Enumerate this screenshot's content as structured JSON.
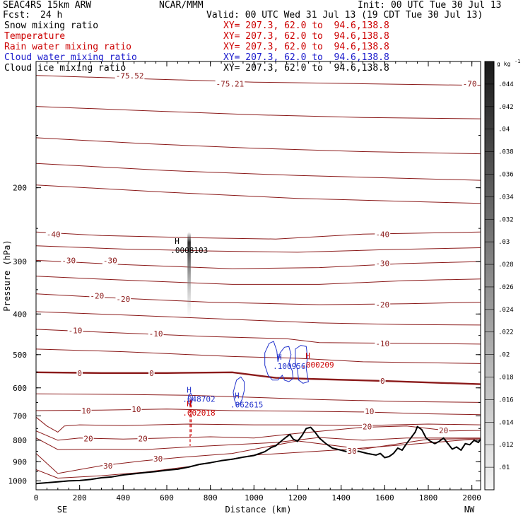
{
  "header": {
    "model": "SEAC4RS 15km ARW",
    "center": "NCAR/MMM",
    "init": "Init: 00 UTC Tue 30 Jul 13",
    "fcst_label": "Fcst:",
    "fcst_value": "24 h",
    "valid": "Valid: 00 UTC Wed 31 Jul 13 (19 CDT Tue 30 Jul 13)",
    "fields": [
      {
        "label": "Snow mixing ratio",
        "xy": "XY= 207.3, 62.0 to  94.6,138.8",
        "color": "#000000"
      },
      {
        "label": "Temperature",
        "xy": "XY= 207.3, 62.0 to  94.6,138.8",
        "color": "#cc0000"
      },
      {
        "label": "Rain water mixing ratio",
        "xy": "XY= 207.3, 62.0 to  94.6,138.8",
        "color": "#cc0000"
      },
      {
        "label": "Cloud water mixing ratio",
        "xy": "XY= 207.3, 62.0 to  94.6,138.8",
        "color": "#1a1acc"
      },
      {
        "label": "Cloud ice mixing ratio",
        "xy": "XY= 207.3, 62.0 to  94.6,138.8",
        "color": "#000000"
      }
    ]
  },
  "chart_data": {
    "type": "cross-section",
    "xlabel": "Distance (km)",
    "ylabel": "Pressure (hPa)",
    "xlim": [
      0,
      2040
    ],
    "ylim": [
      1050,
      100
    ],
    "y_scale": "log",
    "x_ticks": [
      0,
      200,
      400,
      600,
      800,
      1000,
      1200,
      1400,
      1600,
      1800,
      2000
    ],
    "y_ticks": [
      200,
      300,
      400,
      500,
      600,
      700,
      800,
      900,
      1000
    ],
    "x_end_labels": {
      "left": "SE",
      "right": "NW"
    },
    "terrain": [
      [
        0,
        1015
      ],
      [
        50,
        1010
      ],
      [
        100,
        1005
      ],
      [
        150,
        1000
      ],
      [
        200,
        998
      ],
      [
        250,
        992
      ],
      [
        300,
        983
      ],
      [
        350,
        978
      ],
      [
        400,
        968
      ],
      [
        450,
        962
      ],
      [
        500,
        955
      ],
      [
        550,
        950
      ],
      [
        600,
        943
      ],
      [
        650,
        938
      ],
      [
        700,
        927
      ],
      [
        750,
        913
      ],
      [
        800,
        905
      ],
      [
        850,
        895
      ],
      [
        900,
        888
      ],
      [
        950,
        878
      ],
      [
        1000,
        870
      ],
      [
        1050,
        852
      ],
      [
        1080,
        832
      ],
      [
        1100,
        825
      ],
      [
        1130,
        800
      ],
      [
        1150,
        785
      ],
      [
        1165,
        775
      ],
      [
        1180,
        795
      ],
      [
        1200,
        805
      ],
      [
        1220,
        780
      ],
      [
        1240,
        750
      ],
      [
        1260,
        745
      ],
      [
        1280,
        765
      ],
      [
        1300,
        790
      ],
      [
        1330,
        815
      ],
      [
        1360,
        835
      ],
      [
        1400,
        845
      ],
      [
        1440,
        855
      ],
      [
        1480,
        850
      ],
      [
        1520,
        860
      ],
      [
        1560,
        868
      ],
      [
        1580,
        860
      ],
      [
        1600,
        880
      ],
      [
        1620,
        875
      ],
      [
        1640,
        860
      ],
      [
        1660,
        835
      ],
      [
        1680,
        845
      ],
      [
        1700,
        815
      ],
      [
        1720,
        790
      ],
      [
        1740,
        765
      ],
      [
        1750,
        742
      ],
      [
        1770,
        755
      ],
      [
        1790,
        790
      ],
      [
        1810,
        805
      ],
      [
        1830,
        815
      ],
      [
        1850,
        805
      ],
      [
        1870,
        790
      ],
      [
        1890,
        815
      ],
      [
        1910,
        840
      ],
      [
        1930,
        830
      ],
      [
        1950,
        845
      ],
      [
        1970,
        815
      ],
      [
        1990,
        820
      ],
      [
        2010,
        800
      ],
      [
        2030,
        810
      ],
      [
        2040,
        795
      ]
    ],
    "temperature_levels": [
      -70,
      -40,
      -30,
      -20,
      -10,
      0,
      10,
      20,
      30
    ],
    "temperature_labels": [
      {
        "text": "-75.52",
        "x": 430,
        "p": 108
      },
      {
        "text": "-75.21",
        "x": 890,
        "p": 113
      },
      {
        "text": "-70",
        "x": 1990,
        "p": 113
      },
      {
        "text": "-40",
        "x": 80,
        "p": 258
      },
      {
        "text": "-40",
        "x": 1590,
        "p": 258
      },
      {
        "text": "-30",
        "x": 150,
        "p": 298
      },
      {
        "text": "-30",
        "x": 340,
        "p": 298
      },
      {
        "text": "-30",
        "x": 1590,
        "p": 303
      },
      {
        "text": "-20",
        "x": 280,
        "p": 362
      },
      {
        "text": "-20",
        "x": 400,
        "p": 368
      },
      {
        "text": "-20",
        "x": 1590,
        "p": 380
      },
      {
        "text": "-10",
        "x": 180,
        "p": 438
      },
      {
        "text": "-10",
        "x": 550,
        "p": 445
      },
      {
        "text": "-10",
        "x": 1590,
        "p": 470
      },
      {
        "text": "0",
        "x": 200,
        "p": 553
      },
      {
        "text": "0",
        "x": 530,
        "p": 553
      },
      {
        "text": "0",
        "x": 1590,
        "p": 578
      },
      {
        "text": "10",
        "x": 230,
        "p": 680
      },
      {
        "text": "10",
        "x": 460,
        "p": 675
      },
      {
        "text": "10",
        "x": 1530,
        "p": 683
      },
      {
        "text": "20",
        "x": 240,
        "p": 792
      },
      {
        "text": "20",
        "x": 490,
        "p": 792
      },
      {
        "text": "20",
        "x": 1520,
        "p": 742
      },
      {
        "text": "20",
        "x": 1870,
        "p": 758
      },
      {
        "text": "30",
        "x": 330,
        "p": 920
      },
      {
        "text": "30",
        "x": 560,
        "p": 885
      },
      {
        "text": "30",
        "x": 1450,
        "p": 848
      }
    ],
    "cloud_water_maxima": [
      {
        "text": ".100956",
        "x": 1100,
        "p": 535
      },
      {
        "text": ".062615",
        "x": 905,
        "p": 660
      },
      {
        "text": ".048702",
        "x": 685,
        "p": 640
      }
    ],
    "rain_water_maxima": [
      {
        "text": ".000209",
        "x": 1230,
        "p": 530
      },
      {
        "text": ".002018",
        "x": 685,
        "p": 690
      }
    ],
    "snow_maxima": [
      {
        "text": ".0008103",
        "x": 630,
        "p": 283
      }
    ],
    "high_marker": "H",
    "colorbar": {
      "unit": "g kg",
      "unit_exp": "-1",
      "ticks": [
        ".044",
        ".042",
        ".04",
        ".038",
        ".036",
        ".034",
        ".032",
        ".03",
        ".028",
        ".026",
        ".024",
        ".022",
        ".02",
        ".018",
        ".016",
        ".014",
        ".012",
        ".01"
      ]
    }
  }
}
